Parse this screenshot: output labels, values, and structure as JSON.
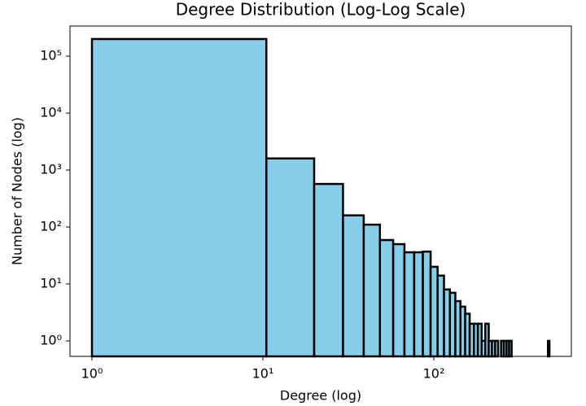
{
  "chart_data": {
    "type": "histogram",
    "title": "Degree Distribution (Log-Log Scale)",
    "x_label": "Degree (log)",
    "y_label": "Number of Nodes (log)",
    "bins": [
      1,
      10.48,
      19.96,
      29.44,
      38.92,
      48.4,
      57.88,
      67.36,
      76.84,
      86.32,
      95.8,
      105.28,
      114.76,
      124.24,
      133.72,
      143.2,
      152.68,
      162.16,
      171.64,
      181.12,
      190.6,
      200.08,
      209.56,
      219.04,
      228.52,
      238,
      247.48,
      256.96,
      266.44,
      275.92,
      285.4,
      294.88,
      304.36,
      313.84,
      323.32,
      332.8,
      342.28,
      351.76,
      361.24,
      370.72,
      380.2,
      389.68,
      399.16,
      408.64,
      418.12,
      427.6,
      437.08,
      446.56,
      456.04,
      465.52,
      475
    ],
    "values": [
      200000,
      1600,
      570,
      160,
      110,
      59,
      50,
      36,
      36,
      37,
      20,
      14,
      8,
      7,
      5,
      4,
      3,
      2,
      2,
      2,
      1,
      2,
      1,
      1,
      1,
      0,
      1,
      1,
      1,
      1,
      0,
      0,
      0,
      0,
      0,
      0,
      0,
      0,
      0,
      0,
      0,
      0,
      0,
      0,
      0,
      0,
      0,
      0,
      0,
      1
    ],
    "color": "#87ceeb",
    "edge_color": "#000000",
    "xscale": "log",
    "yscale": "log",
    "xlim": [
      0.744,
      638
    ],
    "ylim": [
      0.535,
      338000
    ],
    "xticks": [
      {
        "value": 1,
        "label": "10⁰"
      },
      {
        "value": 10,
        "label": "10¹"
      },
      {
        "value": 100,
        "label": "10²"
      }
    ],
    "yticks": [
      {
        "value": 1,
        "label": "10⁰"
      },
      {
        "value": 10,
        "label": "10¹"
      },
      {
        "value": 100,
        "label": "10²"
      },
      {
        "value": 1000,
        "label": "10³"
      },
      {
        "value": 10000,
        "label": "10⁴"
      },
      {
        "value": 100000,
        "label": "10⁵"
      }
    ],
    "grid": false
  }
}
